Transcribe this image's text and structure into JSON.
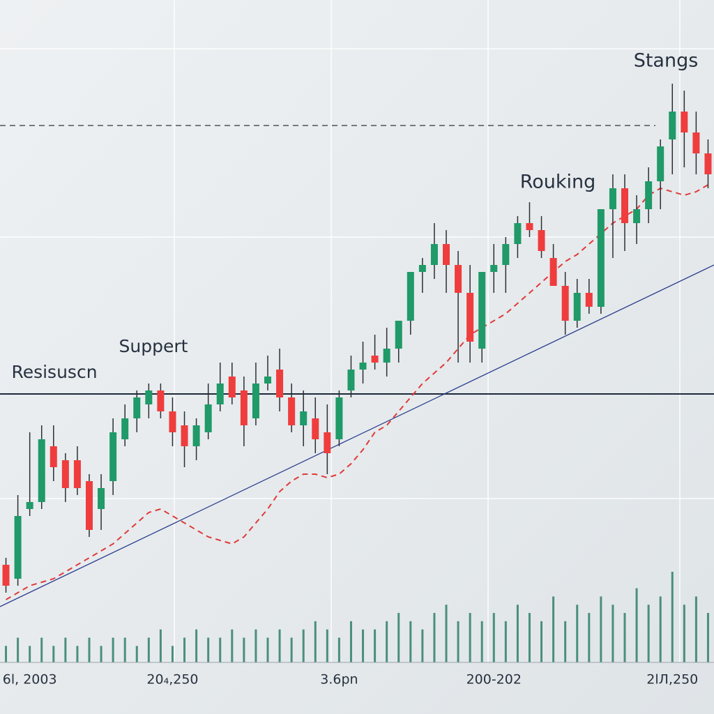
{
  "chart_data": {
    "type": "candlestick",
    "annotations": [
      "Stangs",
      "Rouking",
      "Suppert",
      "Resisuscn"
    ],
    "categories": [
      null,
      null,
      "6l, 2003",
      null,
      null,
      null,
      null,
      null,
      null,
      null,
      null,
      null,
      null,
      null,
      "20₄,250",
      null,
      null,
      null,
      null,
      null,
      null,
      null,
      null,
      null,
      null,
      null,
      null,
      null,
      "3.6pn",
      null,
      null,
      null,
      null,
      null,
      null,
      null,
      null,
      null,
      null,
      null,
      null,
      "200-202",
      null,
      null,
      null,
      null,
      null,
      null,
      null,
      null,
      null,
      null,
      null,
      null,
      null,
      null,
      "2lЛ,250",
      null,
      null,
      null
    ],
    "open": [
      19,
      17,
      27,
      28,
      36,
      34,
      34,
      31,
      27,
      31,
      37,
      40,
      42,
      44,
      41,
      39,
      36,
      38,
      42,
      46,
      44,
      40,
      45,
      47,
      43,
      39,
      40,
      38,
      37,
      44,
      47,
      49,
      48,
      50,
      54,
      61,
      62,
      65,
      62,
      58,
      50,
      61,
      62,
      65,
      68,
      67,
      63,
      59,
      54,
      58,
      56,
      70,
      73,
      68,
      70,
      74,
      80,
      84,
      81,
      78
    ],
    "high": [
      20,
      29,
      38,
      39,
      39,
      35,
      36,
      32,
      32,
      40,
      42,
      44,
      45,
      45,
      43,
      41,
      40,
      45,
      48,
      48,
      46,
      48,
      49,
      50,
      45,
      44,
      43,
      42,
      44,
      49,
      51,
      52,
      53,
      54,
      61,
      63,
      68,
      67,
      64,
      62,
      61,
      65,
      66,
      69,
      71,
      69,
      65,
      61,
      60,
      60,
      70,
      75,
      75,
      72,
      76,
      80,
      88,
      87,
      84,
      80
    ],
    "low": [
      15,
      16,
      26,
      27,
      31,
      28,
      29,
      23,
      24,
      29,
      36,
      38,
      40,
      40,
      36,
      33,
      34,
      37,
      41,
      42,
      36,
      39,
      44,
      41,
      38,
      36,
      35,
      32,
      36,
      43,
      45,
      47,
      46,
      48,
      52,
      58,
      60,
      58,
      48,
      48,
      48,
      58,
      58,
      63,
      66,
      63,
      59,
      52,
      53,
      55,
      55,
      63,
      64,
      65,
      68,
      70,
      75,
      76,
      75,
      73
    ],
    "close": [
      16,
      26,
      28,
      37,
      33,
      30,
      30,
      24,
      30,
      38,
      40,
      43,
      44,
      41,
      38,
      36,
      39,
      42,
      45,
      43,
      39,
      45,
      46,
      43,
      39,
      41,
      37,
      35,
      43,
      47,
      48,
      48,
      50,
      54,
      61,
      62,
      65,
      62,
      58,
      51,
      61,
      62,
      65,
      68,
      67,
      64,
      59,
      54,
      58,
      56,
      70,
      73,
      68,
      70,
      74,
      79,
      84,
      81,
      78,
      75
    ],
    "ma": [
      14,
      15,
      16,
      16.5,
      17,
      18,
      19,
      20,
      21,
      22,
      23.5,
      25,
      26.5,
      27,
      26,
      25,
      24,
      23,
      22.5,
      22,
      23,
      25,
      27,
      29.5,
      31,
      32,
      32,
      31.5,
      32,
      33.5,
      35.5,
      38,
      39,
      41,
      43,
      45,
      46.5,
      48,
      50,
      52,
      53,
      54,
      55,
      56.5,
      58,
      59.5,
      61,
      62.5,
      63.5,
      65,
      66.5,
      68,
      69,
      70,
      72,
      73,
      72.5,
      72,
      72.5,
      73.5
    ],
    "volume": [
      2,
      3,
      2,
      3,
      2,
      3,
      2,
      3,
      2,
      3,
      3,
      2,
      3,
      4,
      2,
      3,
      4,
      3,
      3,
      4,
      3,
      4,
      3,
      4,
      3,
      4,
      5,
      4,
      3,
      5,
      4,
      4,
      5,
      6,
      5,
      4,
      6,
      7,
      5,
      6,
      5,
      6,
      5,
      7,
      6,
      5,
      8,
      5,
      7,
      6,
      8,
      7,
      6,
      9,
      7,
      8,
      11,
      7,
      8,
      6
    ],
    "support": 43.5,
    "resistance": 82,
    "trend_line": [
      13,
      62
    ],
    "up_color": "#1f9a68",
    "down_color": "#ef3d3d",
    "volume_color": "#2f7f67",
    "ma_color": "#e03a3a",
    "trend_color": "#2b3f8f",
    "ylim": [
      0,
      100
    ]
  }
}
